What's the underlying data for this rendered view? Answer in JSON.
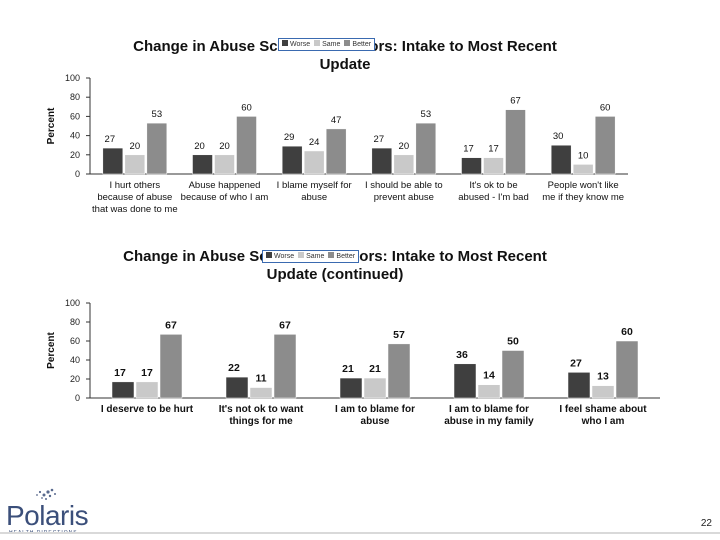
{
  "colors": {
    "worse": "#3f3f3f",
    "same": "#c9c9c9",
    "better": "#8c8c8c",
    "axis": "#333333",
    "legend_border": "#3a6ab0",
    "logo": "#3b4f7a"
  },
  "legend": [
    "Worse",
    "Same",
    "Better"
  ],
  "chart_data": [
    {
      "type": "bar",
      "title": "Change in Abuse Schema Indicators: Intake to Most Recent Update",
      "ylabel": "Percent",
      "ylim": [
        0,
        100
      ],
      "yticks": [
        0,
        20,
        40,
        60,
        80,
        100
      ],
      "categories": [
        "I hurt others because of abuse that was done to me",
        "Abuse happened because of who I am",
        "I blame myself for abuse",
        "I should be able to prevent abuse",
        "It's ok to be abused - I'm bad",
        "People won't like me if they know me"
      ],
      "series": [
        {
          "name": "Worse",
          "values": [
            27,
            20,
            29,
            27,
            17,
            30
          ]
        },
        {
          "name": "Same",
          "values": [
            20,
            20,
            24,
            20,
            17,
            10
          ]
        },
        {
          "name": "Better",
          "values": [
            53,
            60,
            47,
            53,
            67,
            60
          ]
        }
      ]
    },
    {
      "type": "bar",
      "title": "Change in Abuse Schema Indicators: Intake to Most Recent Update (continued)",
      "ylabel": "Percent",
      "ylim": [
        0,
        100
      ],
      "yticks": [
        0,
        20,
        40,
        60,
        80,
        100
      ],
      "categories": [
        "I deserve to be hurt",
        "It's not ok to want things for me",
        "I am to blame for abuse",
        "I am to blame for abuse in my family",
        "I feel shame about who I am"
      ],
      "series": [
        {
          "name": "Worse",
          "values": [
            17,
            22,
            21,
            36,
            27
          ]
        },
        {
          "name": "Same",
          "values": [
            17,
            11,
            21,
            14,
            13
          ]
        },
        {
          "name": "Better",
          "values": [
            67,
            67,
            57,
            50,
            60
          ]
        }
      ]
    }
  ],
  "footer": {
    "page_number": "22",
    "logo_name": "Polaris",
    "logo_tagline": "HEALTH DIRECTIONS"
  }
}
